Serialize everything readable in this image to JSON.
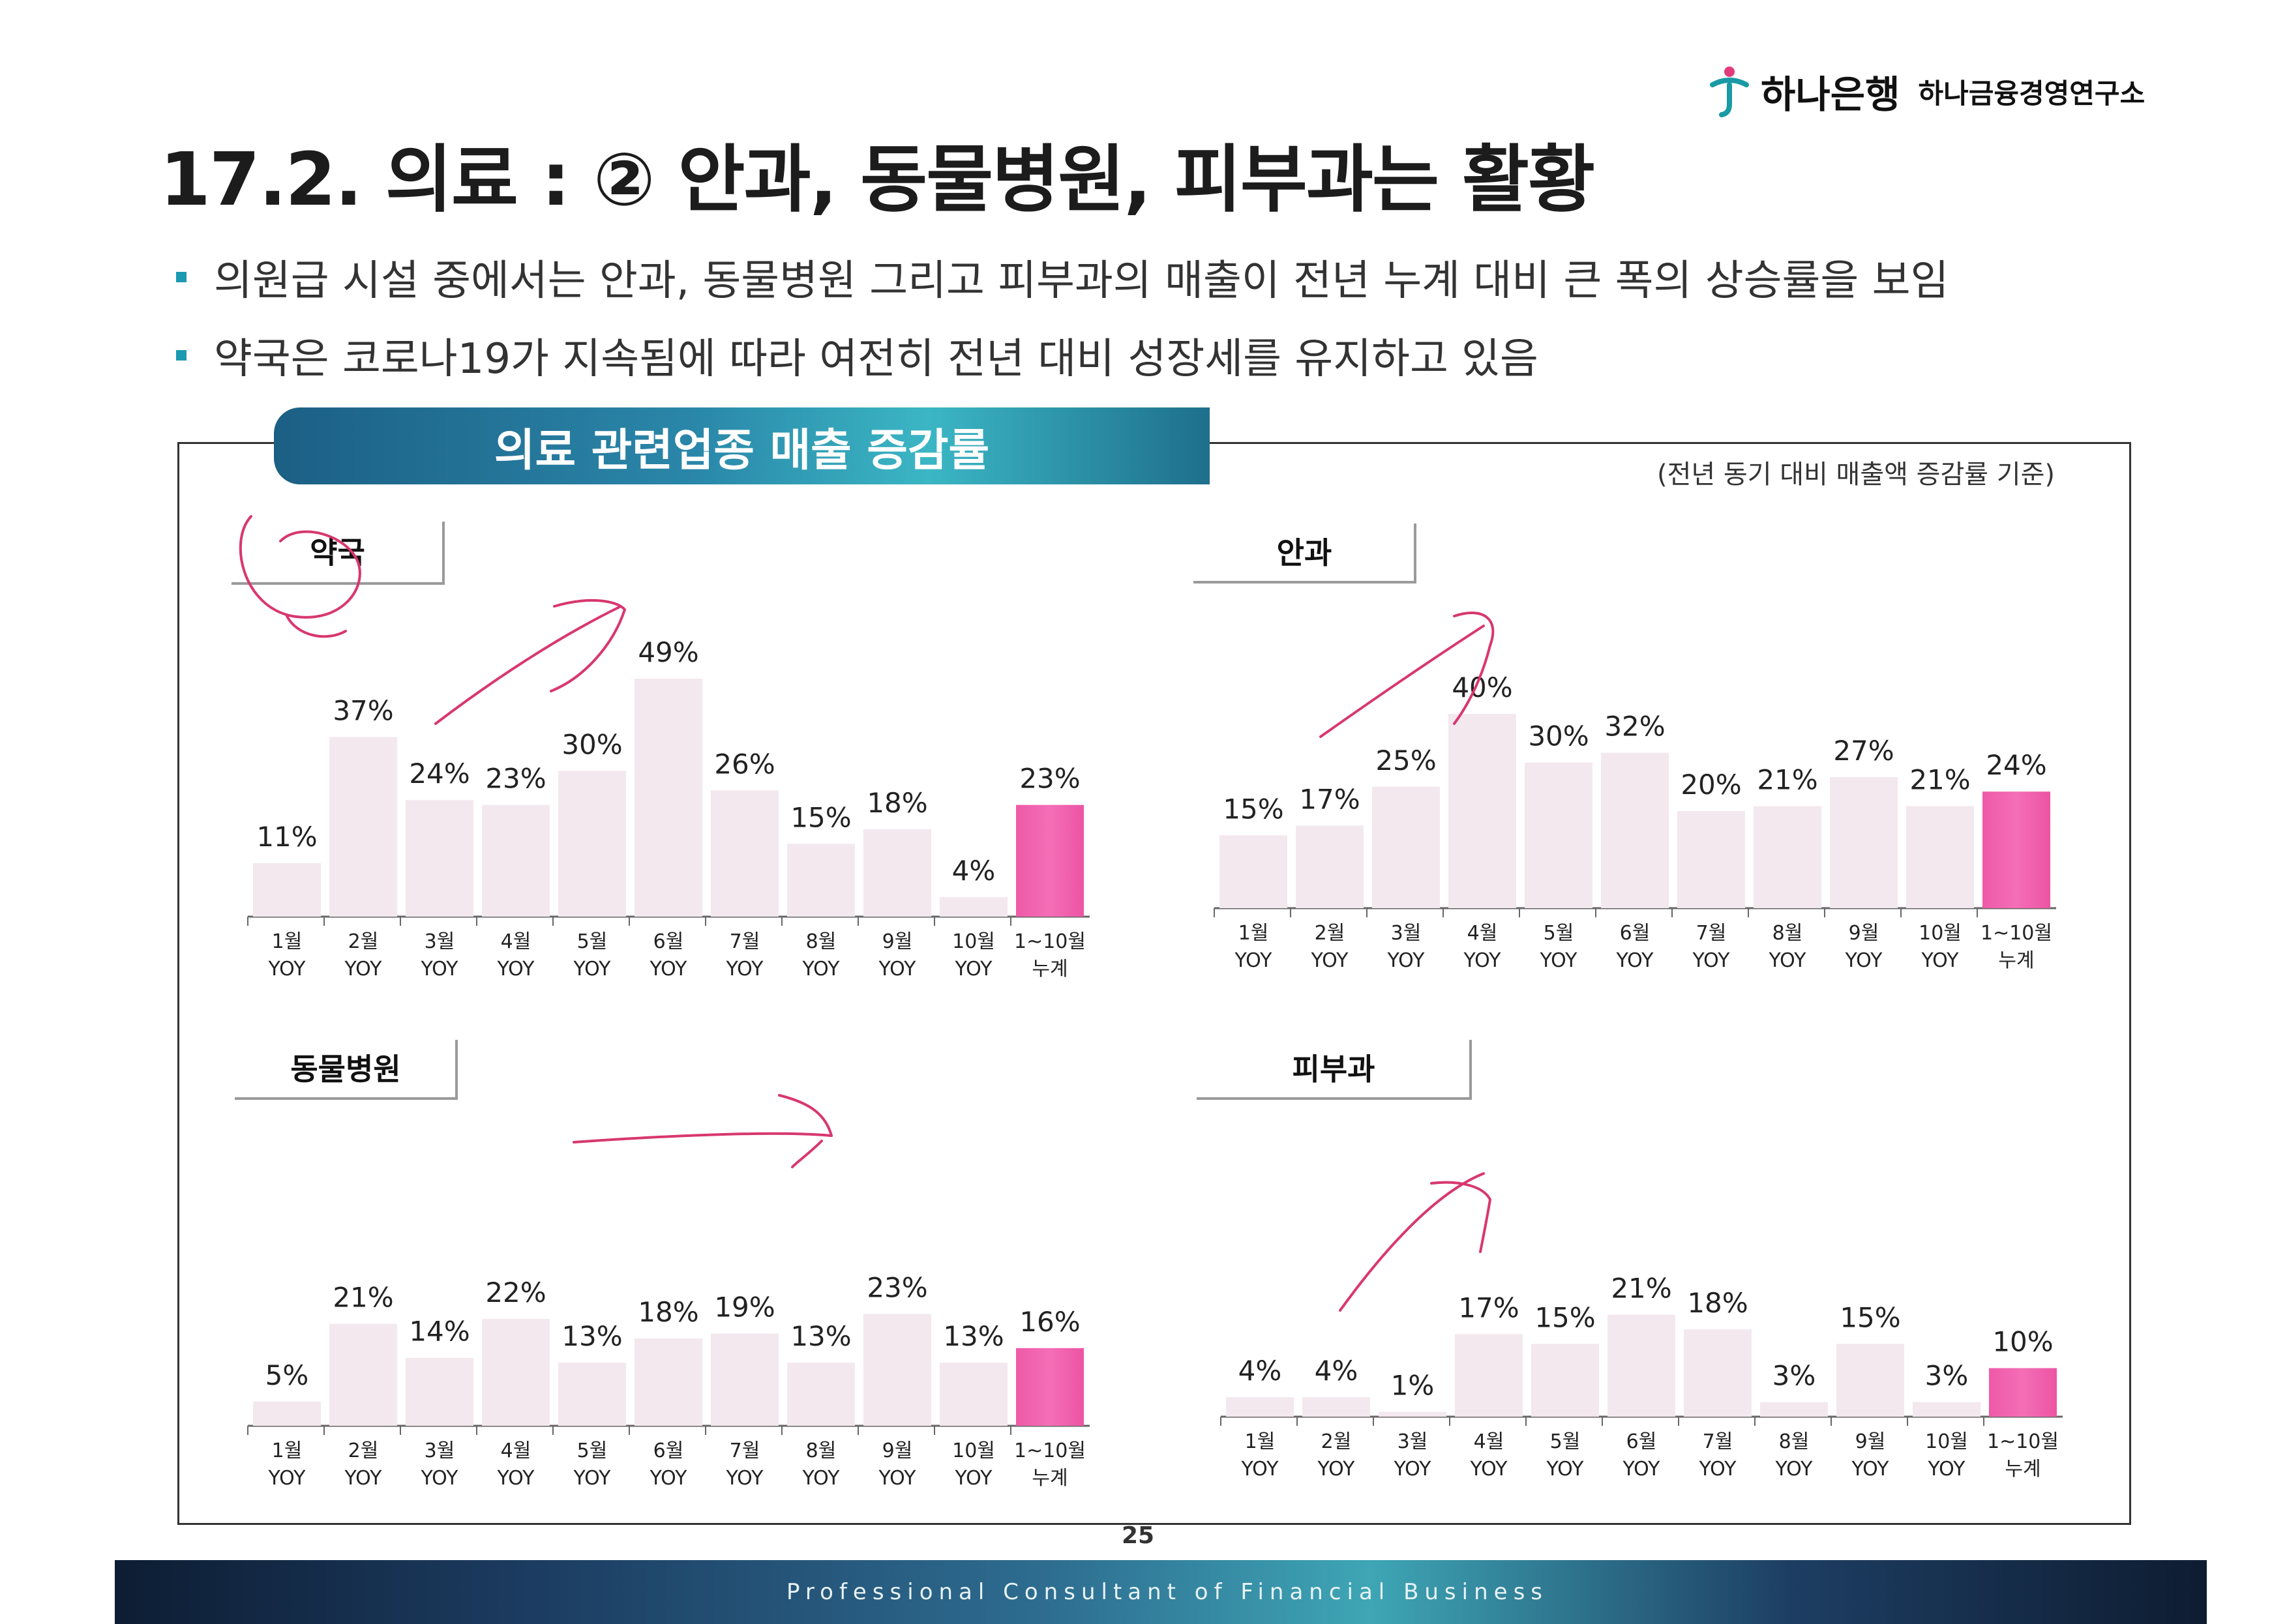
{
  "header": {
    "bank_name": "하나은행",
    "institute_name": "하나금융경영연구소",
    "title": "17.2. 의료 : ② 안과, 동물병원, 피부과는 활황"
  },
  "bullets": [
    "의원급 시설 중에서는 안과, 동물병원 그리고 피부과의 매출이 전년 누계 대비 큰 폭의 상승률을 보임",
    "약국은 코로나19가 지속됨에 따라 여전히 전년 대비 성장세를 유지하고 있음"
  ],
  "panel": {
    "banner": "의료 관련업종 매출 증감률",
    "basis_note": "(전년 동기 대비 매출액 증감률 기준)"
  },
  "colors": {
    "bar": "#f3e8ee",
    "highlight": "#ee5aa8",
    "accent": "#1b9ab0",
    "annotation": "#d8376f"
  },
  "chart_data": [
    {
      "type": "bar",
      "title": "약국",
      "categories": [
        "1월 YOY",
        "2월 YOY",
        "3월 YOY",
        "4월 YOY",
        "5월 YOY",
        "6월 YOY",
        "7월 YOY",
        "8월 YOY",
        "9월 YOY",
        "10월 YOY",
        "1~10월 누계"
      ],
      "values": [
        11,
        37,
        24,
        23,
        30,
        49,
        26,
        15,
        18,
        4,
        23
      ],
      "highlight_index": 10,
      "unit": "%"
    },
    {
      "type": "bar",
      "title": "안과",
      "categories": [
        "1월 YOY",
        "2월 YOY",
        "3월 YOY",
        "4월 YOY",
        "5월 YOY",
        "6월 YOY",
        "7월 YOY",
        "8월 YOY",
        "9월 YOY",
        "10월 YOY",
        "1~10월 누계"
      ],
      "values": [
        15,
        17,
        25,
        40,
        30,
        32,
        20,
        21,
        27,
        21,
        24
      ],
      "highlight_index": 10,
      "unit": "%"
    },
    {
      "type": "bar",
      "title": "동물병원",
      "categories": [
        "1월 YOY",
        "2월 YOY",
        "3월 YOY",
        "4월 YOY",
        "5월 YOY",
        "6월 YOY",
        "7월 YOY",
        "8월 YOY",
        "9월 YOY",
        "10월 YOY",
        "1~10월 누계"
      ],
      "values": [
        5,
        21,
        14,
        22,
        13,
        18,
        19,
        13,
        23,
        13,
        16
      ],
      "highlight_index": 10,
      "unit": "%"
    },
    {
      "type": "bar",
      "title": "피부과",
      "categories": [
        "1월 YOY",
        "2월 YOY",
        "3월 YOY",
        "4월 YOY",
        "5월 YOY",
        "6월 YOY",
        "7월 YOY",
        "8월 YOY",
        "9월 YOY",
        "10월 YOY",
        "1~10월 누계"
      ],
      "values": [
        4,
        4,
        1,
        17,
        15,
        21,
        18,
        3,
        15,
        3,
        10
      ],
      "highlight_index": 10,
      "unit": "%"
    }
  ],
  "page_number": "25",
  "footer_text": "Professional Consultant of Financial Business"
}
